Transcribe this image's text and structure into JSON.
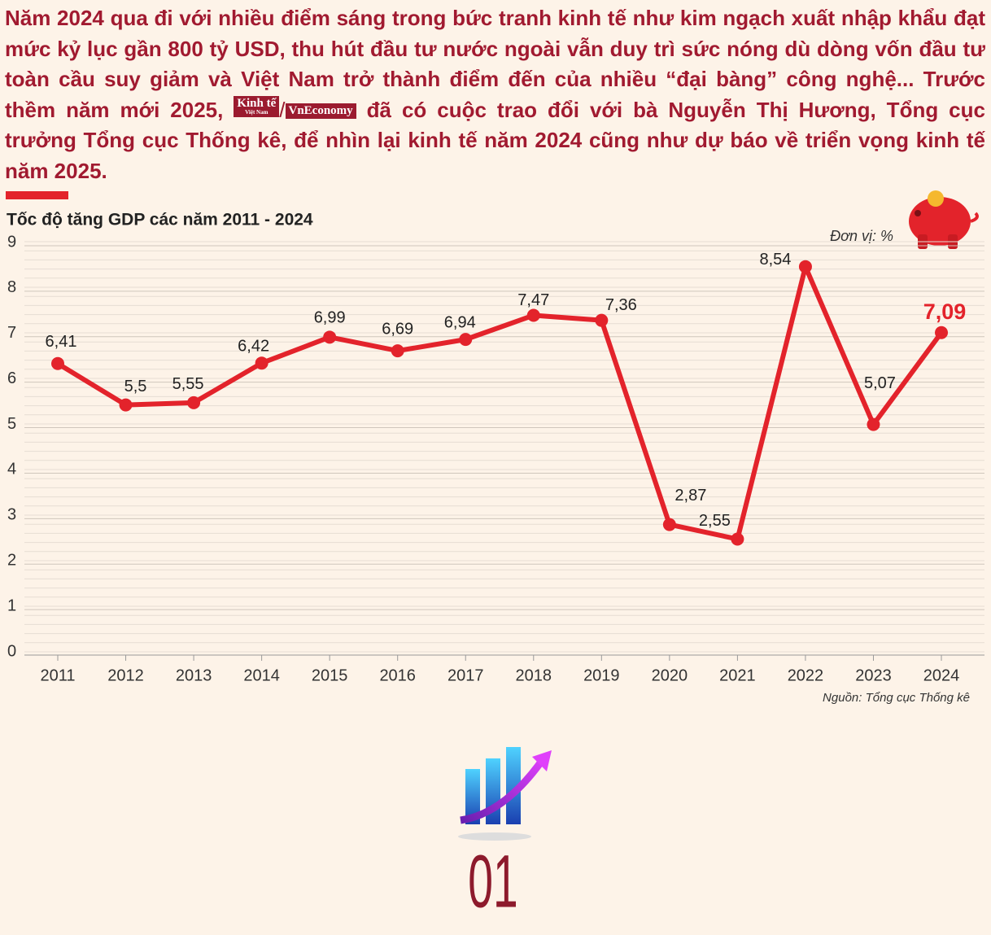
{
  "intro": {
    "text_before": "Năm 2024 qua đi với nhiều điểm sáng trong bức tranh kinh tế như kim ngạch xuất nhập khẩu đạt mức kỷ lục gần 800 tỷ USD, thu hút đầu tư nước ngoài vẫn duy trì sức nóng dù dòng vốn đầu tư toàn cầu suy giảm và Việt Nam trở thành điểm đến của nhiều “đại bàng” công nghệ... Trước thềm năm mới 2025,",
    "logo_1": "Kinh tế",
    "logo_1_sub": "Việt Nam",
    "logo_2": "VnEconomy",
    "text_after": "đã có cuộc trao đổi với bà Nguyễn Thị Hương, Tổng cục trưởng Tổng cục Thống kê, để nhìn lại kinh tế năm 2024 cũng như dự báo về triển vọng kinh tế năm 2025."
  },
  "chart_data": {
    "type": "line",
    "title": "Tốc độ tăng GDP các năm 2011 - 2024",
    "unit": "Đơn vị: %",
    "source": "Nguồn: Tổng cục Thống kê",
    "categories": [
      "2011",
      "2012",
      "2013",
      "2014",
      "2015",
      "2016",
      "2017",
      "2018",
      "2019",
      "2020",
      "2021",
      "2022",
      "2023",
      "2024"
    ],
    "series": [
      {
        "name": "Tốc độ tăng GDP",
        "color": "#e3232b",
        "values": [
          6.41,
          5.5,
          5.55,
          6.42,
          6.99,
          6.69,
          6.94,
          7.47,
          7.36,
          2.87,
          2.55,
          8.54,
          5.07,
          7.09
        ],
        "value_labels": [
          "6,41",
          "5,5",
          "5,55",
          "6,42",
          "6,99",
          "6,69",
          "6,94",
          "7,47",
          "7,36",
          "2,87",
          "2,55",
          "8,54",
          "5,07",
          "7,09"
        ]
      }
    ],
    "ylim": [
      0,
      9
    ],
    "yticks": [
      0,
      1,
      2,
      3,
      4,
      5,
      6,
      7,
      8,
      9
    ],
    "grid": true
  },
  "page_number": "01"
}
